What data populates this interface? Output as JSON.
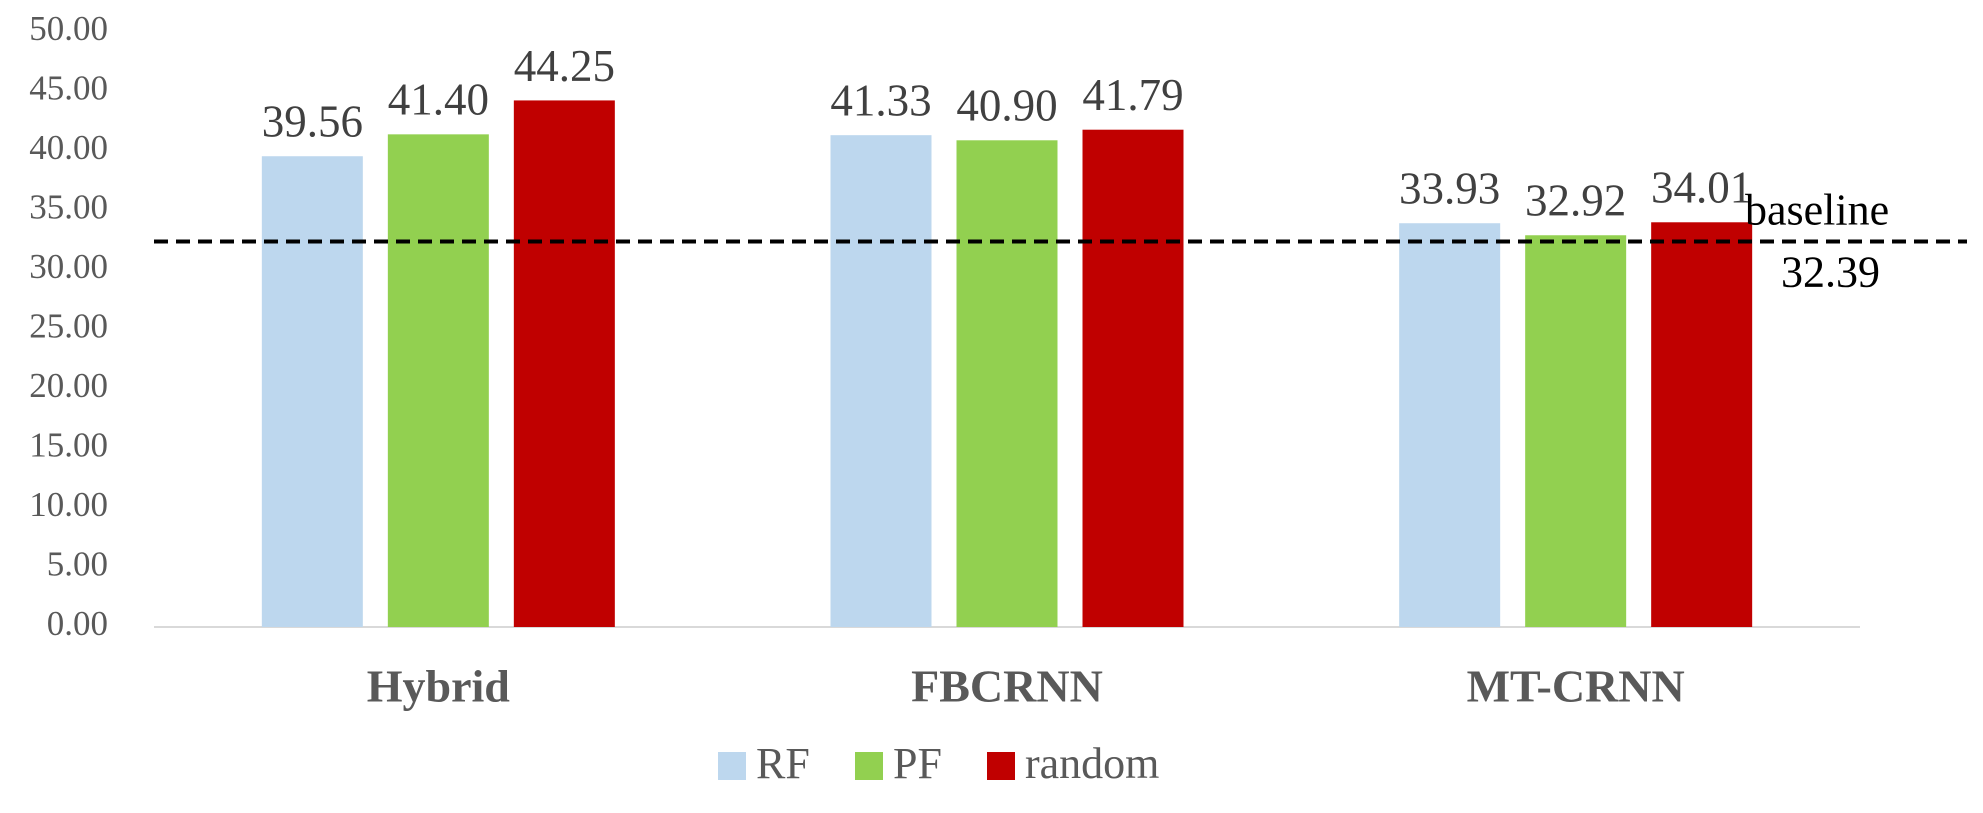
{
  "chart_data": {
    "type": "bar",
    "categories": [
      "Hybrid",
      "FBCRNN",
      "MT-CRNN"
    ],
    "series": [
      {
        "name": "RF",
        "color": "#bdd7ee",
        "values": [
          39.56,
          41.33,
          33.93
        ],
        "value_labels": [
          "39.56",
          "41.33",
          "33.93"
        ]
      },
      {
        "name": "PF",
        "color": "#92d050",
        "values": [
          41.4,
          40.9,
          32.92
        ],
        "value_labels": [
          "41.40",
          "40.90",
          "32.92"
        ]
      },
      {
        "name": "random",
        "color": "#c00000",
        "values": [
          44.25,
          41.79,
          34.01
        ],
        "value_labels": [
          "44.25",
          "41.79",
          "34.01"
        ]
      }
    ],
    "baseline": {
      "label": "baseline",
      "value": 32.39
    },
    "ylim": [
      0,
      50
    ],
    "yticks": [
      {
        "value": 0,
        "label": "0.00"
      },
      {
        "value": 5,
        "label": "5.00"
      },
      {
        "value": 10,
        "label": "10.00"
      },
      {
        "value": 15,
        "label": "15.00"
      },
      {
        "value": 20,
        "label": "20.00"
      },
      {
        "value": 25,
        "label": "25.00"
      },
      {
        "value": 30,
        "label": "30.00"
      },
      {
        "value": 35,
        "label": "35.00"
      },
      {
        "value": 40,
        "label": "40.00"
      },
      {
        "value": 45,
        "label": "45.00"
      },
      {
        "value": 50,
        "label": "50.00"
      }
    ],
    "grid": false,
    "legend": "bottom"
  }
}
